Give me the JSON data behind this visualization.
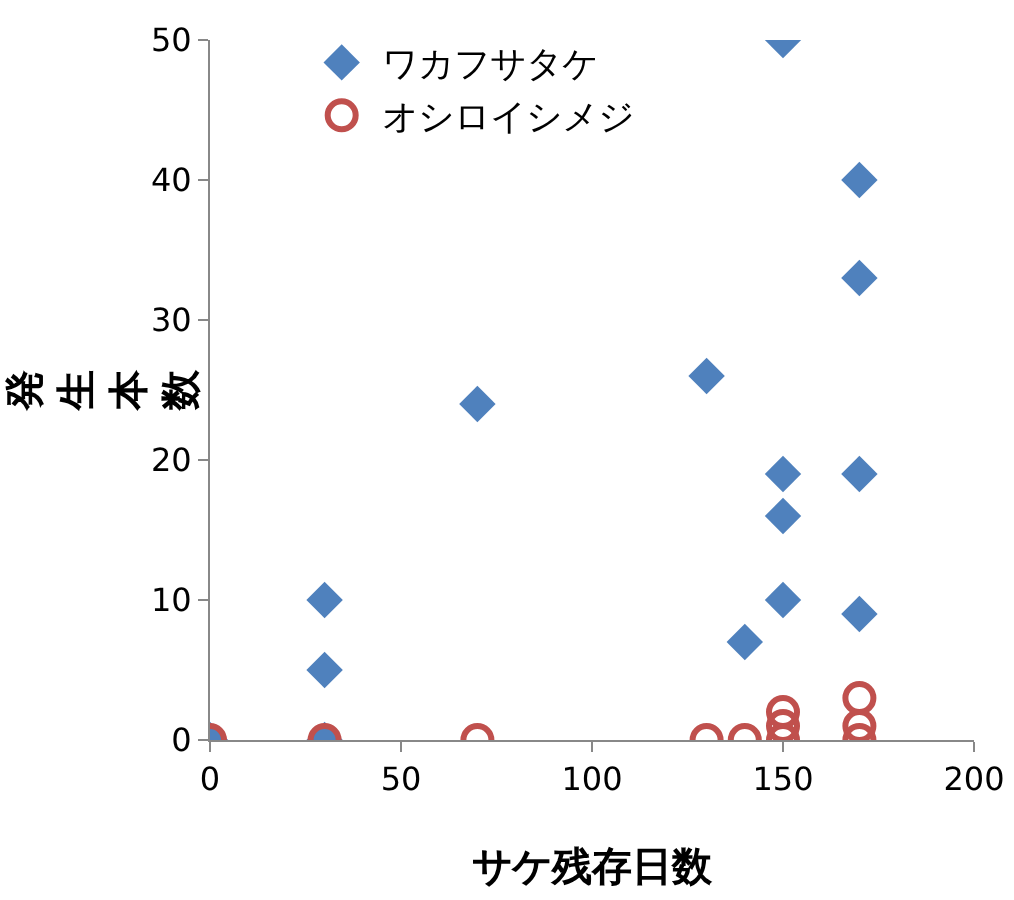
{
  "chart_data": {
    "type": "scatter",
    "xlabel": "サケ残存日数",
    "ylabel": "発生本数",
    "xlim": [
      0,
      200
    ],
    "xticks": [
      0,
      50,
      100,
      150,
      200
    ],
    "ylim": [
      0,
      50
    ],
    "yticks": [
      0,
      10,
      20,
      30,
      40,
      50
    ],
    "grid": false,
    "legend": "top left",
    "series": [
      {
        "name": "ワカフサタケ",
        "color": "#4f81bd",
        "marker": "diamond",
        "x": [
          0,
          30,
          30,
          30,
          70,
          130,
          140,
          150,
          150,
          150,
          150,
          170,
          170,
          170,
          170
        ],
        "values": [
          0,
          0,
          5,
          10,
          24,
          26,
          7,
          10,
          16,
          19,
          50,
          9,
          19,
          33,
          40
        ]
      },
      {
        "name": "オシロイシメジ",
        "color": "#c0504d",
        "marker": "circle-open",
        "x": [
          0,
          30,
          70,
          130,
          140,
          150,
          150,
          150,
          170,
          170,
          170
        ],
        "values": [
          0,
          0,
          0,
          0,
          0,
          0,
          1,
          2,
          0,
          1,
          3
        ]
      }
    ]
  }
}
